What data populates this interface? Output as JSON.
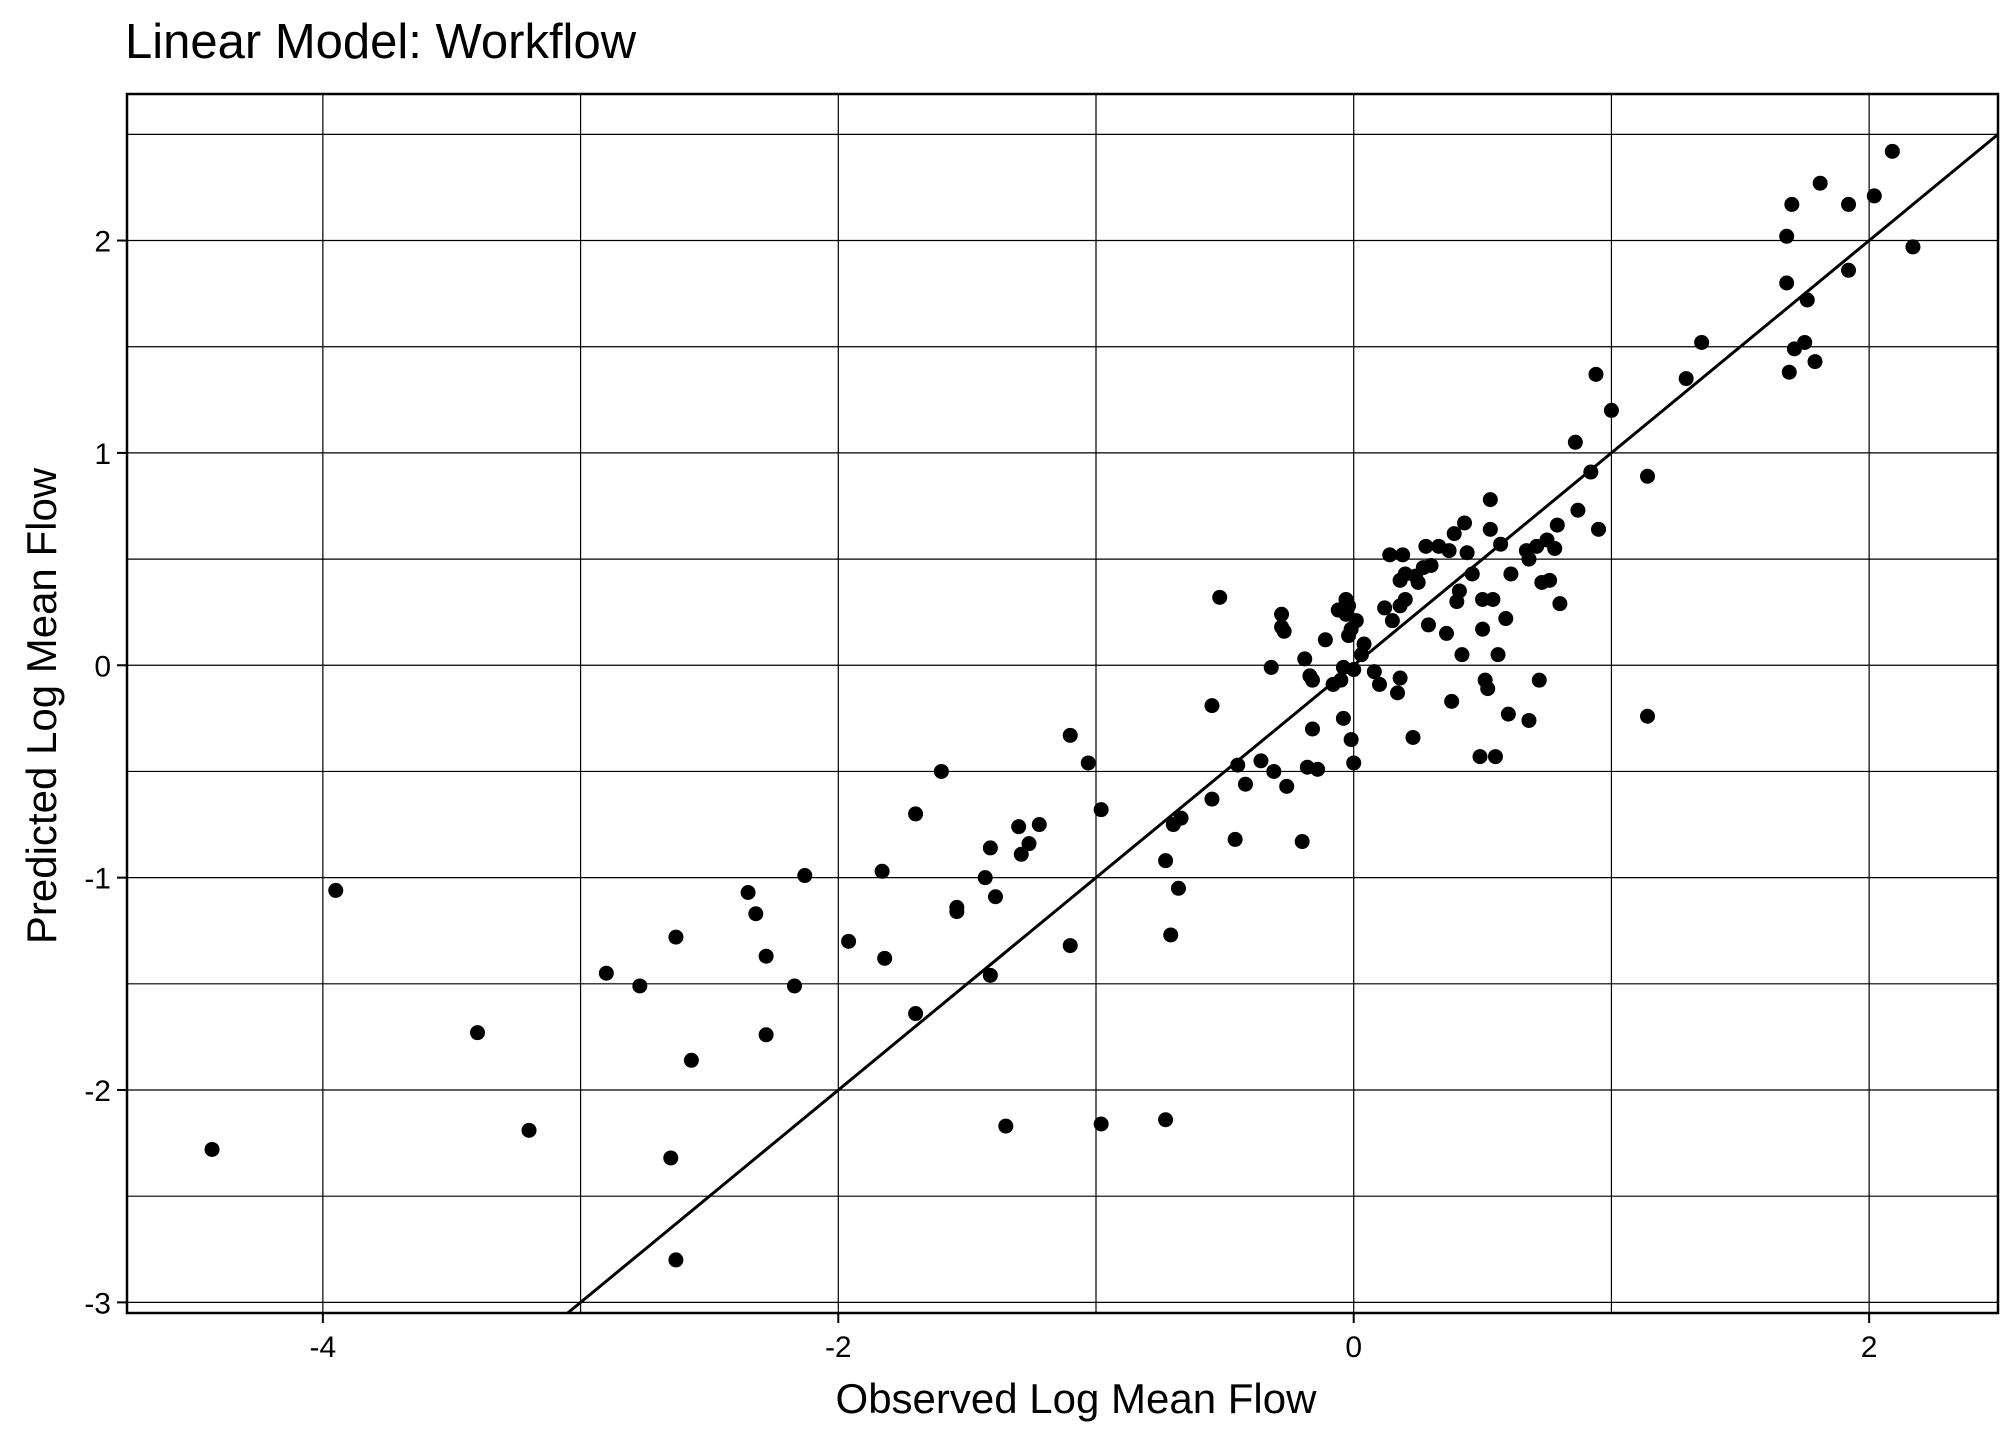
{
  "chart_data": {
    "type": "scatter",
    "title": "Linear Model: Workflow",
    "xlabel": "Observed Log Mean Flow",
    "ylabel": "Predicted Log Mean Flow",
    "xlim": [
      -4.76,
      2.5
    ],
    "ylim": [
      -3.05,
      2.69
    ],
    "x_ticks": [
      -4,
      -2,
      0,
      2
    ],
    "y_ticks": [
      -3,
      -2,
      -1,
      0,
      1,
      2
    ],
    "x_grid": [
      -4,
      -3,
      -2,
      -1,
      0,
      1,
      2
    ],
    "y_grid": [
      -3,
      -2.5,
      -2,
      -1.5,
      -1,
      -0.5,
      0,
      0.5,
      1,
      1.5,
      2,
      2.5
    ],
    "grid": true,
    "reference_line": {
      "slope": 1,
      "intercept": 0
    },
    "points_color": "#000000",
    "points": [
      [
        -4.43,
        -2.28
      ],
      [
        -3.95,
        -1.06
      ],
      [
        -3.4,
        -1.73
      ],
      [
        -3.2,
        -2.19
      ],
      [
        -2.9,
        -1.45
      ],
      [
        -2.77,
        -1.51
      ],
      [
        -2.65,
        -2.32
      ],
      [
        -2.63,
        -1.28
      ],
      [
        -2.63,
        -2.8
      ],
      [
        -2.57,
        -1.86
      ],
      [
        -2.35,
        -1.07
      ],
      [
        -2.32,
        -1.17
      ],
      [
        -2.28,
        -1.37
      ],
      [
        -2.28,
        -1.74
      ],
      [
        -2.17,
        -1.51
      ],
      [
        -2.13,
        -0.99
      ],
      [
        -1.96,
        -1.3
      ],
      [
        -1.83,
        -0.97
      ],
      [
        -1.82,
        -1.38
      ],
      [
        -1.7,
        -0.7
      ],
      [
        -1.7,
        -1.64
      ],
      [
        -1.6,
        -0.5
      ],
      [
        -1.54,
        -1.16
      ],
      [
        -1.54,
        -1.14
      ],
      [
        -1.43,
        -1.0
      ],
      [
        -1.41,
        -0.86
      ],
      [
        -1.41,
        -1.46
      ],
      [
        -1.39,
        -1.09
      ],
      [
        -1.35,
        -2.17
      ],
      [
        -1.3,
        -0.76
      ],
      [
        -1.29,
        -0.89
      ],
      [
        -1.26,
        -0.84
      ],
      [
        -1.22,
        -0.75
      ],
      [
        -1.1,
        -0.33
      ],
      [
        -1.1,
        -1.32
      ],
      [
        -1.03,
        -0.46
      ],
      [
        -0.98,
        -0.68
      ],
      [
        -0.98,
        -2.16
      ],
      [
        -0.73,
        -0.92
      ],
      [
        -0.73,
        -2.14
      ],
      [
        -0.71,
        -1.27
      ],
      [
        -0.7,
        -0.75
      ],
      [
        -0.68,
        -1.05
      ],
      [
        -0.67,
        -0.72
      ],
      [
        -0.55,
        -0.19
      ],
      [
        -0.55,
        -0.63
      ],
      [
        -0.52,
        0.32
      ],
      [
        -0.46,
        -0.82
      ],
      [
        -0.45,
        -0.47
      ],
      [
        -0.42,
        -0.56
      ],
      [
        -0.36,
        -0.45
      ],
      [
        -0.32,
        -0.01
      ],
      [
        -0.31,
        -0.5
      ],
      [
        -0.28,
        0.24
      ],
      [
        -0.28,
        0.18
      ],
      [
        -0.27,
        0.16
      ],
      [
        -0.26,
        -0.57
      ],
      [
        -0.2,
        -0.83
      ],
      [
        -0.19,
        0.03
      ],
      [
        -0.18,
        -0.48
      ],
      [
        -0.17,
        -0.05
      ],
      [
        -0.16,
        -0.07
      ],
      [
        -0.16,
        -0.3
      ],
      [
        -0.14,
        -0.49
      ],
      [
        -0.11,
        0.12
      ],
      [
        -0.08,
        -0.09
      ],
      [
        -0.06,
        0.26
      ],
      [
        -0.05,
        -0.07
      ],
      [
        -0.04,
        -0.01
      ],
      [
        -0.04,
        -0.25
      ],
      [
        -0.03,
        0.24
      ],
      [
        -0.03,
        0.31
      ],
      [
        -0.02,
        0.14
      ],
      [
        -0.02,
        0.28
      ],
      [
        -0.01,
        0.17
      ],
      [
        -0.01,
        -0.35
      ],
      [
        0.0,
        -0.46
      ],
      [
        0.0,
        -0.02
      ],
      [
        0.01,
        0.21
      ],
      [
        0.03,
        0.05
      ],
      [
        0.04,
        0.1
      ],
      [
        0.08,
        -0.03
      ],
      [
        0.1,
        -0.09
      ],
      [
        0.12,
        0.27
      ],
      [
        0.14,
        0.52
      ],
      [
        0.15,
        0.21
      ],
      [
        0.17,
        -0.13
      ],
      [
        0.18,
        -0.06
      ],
      [
        0.18,
        0.28
      ],
      [
        0.18,
        0.4
      ],
      [
        0.19,
        0.52
      ],
      [
        0.2,
        0.31
      ],
      [
        0.2,
        0.43
      ],
      [
        0.23,
        -0.34
      ],
      [
        0.24,
        0.42
      ],
      [
        0.25,
        0.39
      ],
      [
        0.27,
        0.46
      ],
      [
        0.28,
        0.56
      ],
      [
        0.29,
        0.19
      ],
      [
        0.3,
        0.47
      ],
      [
        0.33,
        0.56
      ],
      [
        0.36,
        0.15
      ],
      [
        0.37,
        0.54
      ],
      [
        0.38,
        -0.17
      ],
      [
        0.39,
        0.62
      ],
      [
        0.4,
        0.3
      ],
      [
        0.41,
        0.35
      ],
      [
        0.42,
        0.05
      ],
      [
        0.43,
        0.67
      ],
      [
        0.44,
        0.53
      ],
      [
        0.46,
        0.43
      ],
      [
        0.49,
        -0.43
      ],
      [
        0.5,
        0.17
      ],
      [
        0.5,
        0.31
      ],
      [
        0.51,
        -0.07
      ],
      [
        0.52,
        -0.11
      ],
      [
        0.53,
        0.64
      ],
      [
        0.53,
        0.78
      ],
      [
        0.54,
        0.31
      ],
      [
        0.55,
        -0.43
      ],
      [
        0.56,
        0.05
      ],
      [
        0.57,
        0.57
      ],
      [
        0.59,
        0.22
      ],
      [
        0.61,
        0.43
      ],
      [
        0.6,
        -0.23
      ],
      [
        0.67,
        0.54
      ],
      [
        0.68,
        0.5
      ],
      [
        0.68,
        -0.26
      ],
      [
        0.71,
        0.56
      ],
      [
        0.72,
        -0.07
      ],
      [
        0.73,
        0.39
      ],
      [
        0.75,
        0.59
      ],
      [
        0.76,
        0.4
      ],
      [
        0.78,
        0.55
      ],
      [
        0.79,
        0.66
      ],
      [
        0.8,
        0.29
      ],
      [
        0.86,
        1.05
      ],
      [
        0.87,
        0.73
      ],
      [
        0.92,
        0.91
      ],
      [
        0.94,
        1.37
      ],
      [
        0.95,
        0.64
      ],
      [
        1.0,
        1.2
      ],
      [
        1.14,
        0.89
      ],
      [
        1.14,
        -0.24
      ],
      [
        1.29,
        1.35
      ],
      [
        1.35,
        1.52
      ],
      [
        1.68,
        2.02
      ],
      [
        1.68,
        1.8
      ],
      [
        1.69,
        1.38
      ],
      [
        1.7,
        2.17
      ],
      [
        1.71,
        1.49
      ],
      [
        1.75,
        1.52
      ],
      [
        1.76,
        1.72
      ],
      [
        1.79,
        1.43
      ],
      [
        1.81,
        2.27
      ],
      [
        1.92,
        2.17
      ],
      [
        1.92,
        1.86
      ],
      [
        2.02,
        2.21
      ],
      [
        2.09,
        2.42
      ],
      [
        2.17,
        1.97
      ]
    ]
  }
}
